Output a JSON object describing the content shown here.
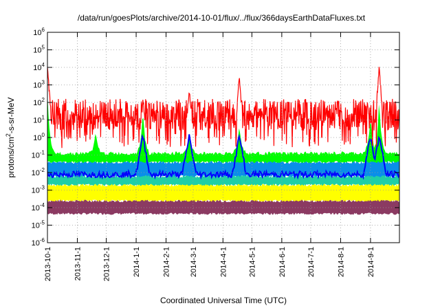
{
  "chart_data": {
    "type": "area",
    "title": "/data/run/goesPlots/archive/2014-10-01/flux/../flux/366daysEarthDataFluxes.txt",
    "xlabel": "Coordinated Universal Time (UTC)",
    "ylabel_main": "protons/cm",
    "ylabel_sup": "2",
    "ylabel_rest": "-s-sr-MeV",
    "x_range": [
      "2013-10-01",
      "2014-10-01"
    ],
    "y_scale": "log",
    "ylim": [
      1e-06,
      1000000.0
    ],
    "grid": true,
    "x_ticks": [
      "2013-10-1",
      "2013-11-1",
      "2013-12-1",
      "2014-1-1",
      "2014-2-1",
      "2014-3-1",
      "2014-4-1",
      "2014-5-1",
      "2014-6-1",
      "2014-7-1",
      "2014-8-1",
      "2014-9-1"
    ],
    "y_ticks": [
      {
        "base": "10",
        "exp": "-6"
      },
      {
        "base": "10",
        "exp": "-5"
      },
      {
        "base": "10",
        "exp": "-4"
      },
      {
        "base": "10",
        "exp": "-3"
      },
      {
        "base": "10",
        "exp": "-2"
      },
      {
        "base": "10",
        "exp": "-1"
      },
      {
        "base": "10",
        "exp": "0"
      },
      {
        "base": "10",
        "exp": "1"
      },
      {
        "base": "10",
        "exp": "2"
      },
      {
        "base": "10",
        "exp": "3"
      },
      {
        "base": "10",
        "exp": "4"
      },
      {
        "base": "10",
        "exp": "5"
      },
      {
        "base": "10",
        "exp": "6"
      }
    ],
    "bands": [
      {
        "color": "#8b3a62",
        "top_log": -3.6,
        "bottom_log": -4.35,
        "spikes": [
          {
            "date": "2014-01-08",
            "top_log": -2.8
          },
          {
            "date": "2014-02-25",
            "top_log": -3.3
          },
          {
            "date": "2014-04-18",
            "top_log": -3.4
          },
          {
            "date": "2014-09-01",
            "top_log": -2.6
          },
          {
            "date": "2014-09-10",
            "top_log": -2.9
          }
        ]
      },
      {
        "color": "#ffff00",
        "top_log": -2.7,
        "bottom_log": -3.6,
        "spikes": [
          {
            "date": "2014-01-08",
            "top_log": -2.0
          },
          {
            "date": "2014-02-25",
            "top_log": -2.4
          },
          {
            "date": "2014-04-18",
            "top_log": -2.6
          },
          {
            "date": "2014-09-01",
            "top_log": -1.7
          },
          {
            "date": "2014-09-10",
            "top_log": -1.9
          }
        ]
      },
      {
        "color": "#1fcfa6",
        "top_log": -2.2,
        "bottom_log": -2.7,
        "spikes": [
          {
            "date": "2014-01-08",
            "top_log": -1.4
          },
          {
            "date": "2014-02-25",
            "top_log": -1.8
          },
          {
            "date": "2014-04-18",
            "top_log": -2.0
          },
          {
            "date": "2014-09-01",
            "top_log": -1.2
          },
          {
            "date": "2014-09-10",
            "top_log": -1.3
          }
        ]
      },
      {
        "color": "#0a8fe8",
        "top_log": -1.4,
        "bottom_log": -2.2,
        "spikes": [
          {
            "date": "2014-01-08",
            "top_log": 0.4
          },
          {
            "date": "2014-02-25",
            "top_log": -0.6
          },
          {
            "date": "2014-04-18",
            "top_log": -0.9
          },
          {
            "date": "2014-09-01",
            "top_log": 0.2
          },
          {
            "date": "2014-09-10",
            "top_log": 1.0
          }
        ]
      },
      {
        "color": "#00ff00",
        "top_log": -0.9,
        "bottom_log": -1.4,
        "spikes": [
          {
            "date": "2013-10-01",
            "top_log": 2.6
          },
          {
            "date": "2013-11-20",
            "top_log": 0.3
          },
          {
            "date": "2014-01-08",
            "top_log": 1.6
          },
          {
            "date": "2014-02-25",
            "top_log": 0.2
          },
          {
            "date": "2014-04-18",
            "top_log": 0.8
          },
          {
            "date": "2014-09-01",
            "top_log": 1.3
          },
          {
            "date": "2014-09-10",
            "top_log": 2.2
          }
        ]
      }
    ],
    "blue_line": {
      "color": "#0000ff",
      "level_log": -2.1
    },
    "red_series": {
      "color": "#ff0000",
      "mean_log": 1.3,
      "spread_log": 0.9,
      "floor_log": -0.6,
      "peaks": [
        {
          "date": "2013-10-01",
          "value_log": 4.2
        },
        {
          "date": "2014-01-08",
          "value_log": 2.4
        },
        {
          "date": "2014-02-25",
          "value_log": 3.0
        },
        {
          "date": "2014-04-18",
          "value_log": 3.6
        },
        {
          "date": "2014-09-10",
          "value_log": 4.1
        }
      ]
    }
  }
}
